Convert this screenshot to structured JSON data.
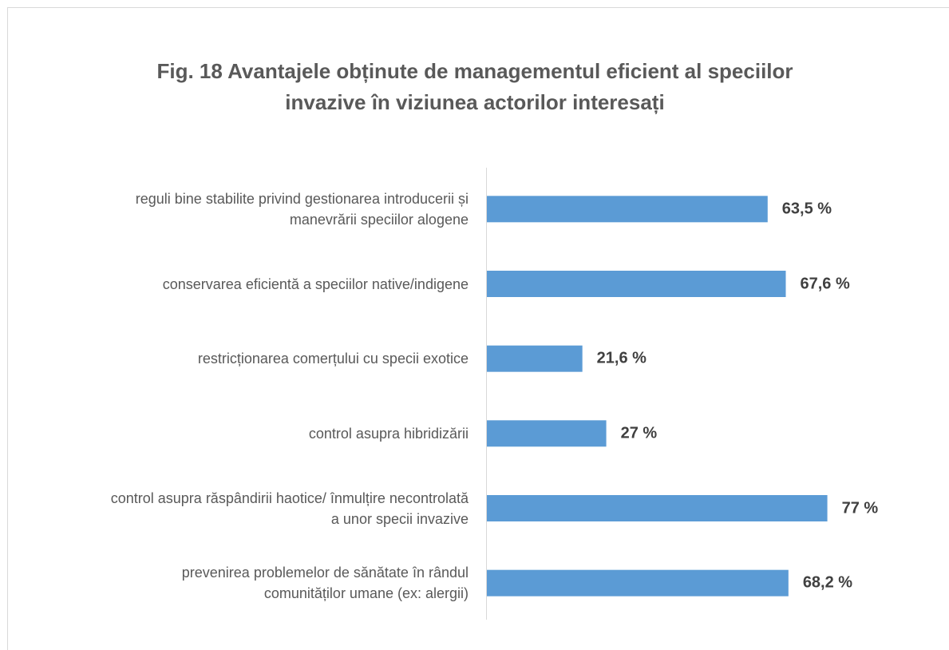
{
  "chart_data": {
    "type": "bar",
    "orientation": "horizontal",
    "title": "Fig. 18 Avantajele obținute de managementul eficient al speciilor\ninvazive în viziunea actorilor interesați",
    "categories": [
      "reguli bine stabilite privind gestionarea introducerii și\nmanevrării speciilor alogene",
      "conservarea eficientă a speciilor native/indigene",
      "restricționarea comerțului cu specii exotice",
      "control asupra hibridizării",
      "control asupra răspândirii haotice/ înmulțire necontrolată\na unor specii invazive",
      "prevenirea problemelor de sănătate în rândul\ncomunităților umane (ex: alergii)"
    ],
    "values": [
      63.5,
      67.6,
      21.6,
      27,
      77,
      68.2
    ],
    "value_labels": [
      "63,5 %",
      "67,6 %",
      "21,6 %",
      "27 %",
      "77 %",
      "68,2 %"
    ],
    "color": "#5b9bd5",
    "xlim": [
      0,
      100
    ]
  }
}
